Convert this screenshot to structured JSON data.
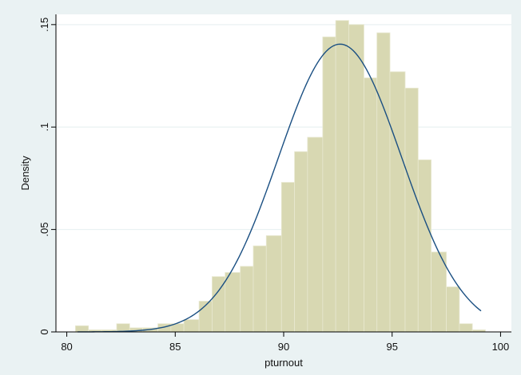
{
  "chart_data": {
    "type": "bar",
    "subtype": "histogram with normal density overlay",
    "title": "",
    "xlabel": "pturnout",
    "ylabel": "Density",
    "xlim": [
      79.5,
      100.5
    ],
    "ylim": [
      0,
      0.155
    ],
    "x_ticks": [
      80,
      85,
      90,
      95,
      100
    ],
    "x_tick_labels": [
      "80",
      "85",
      "90",
      "95",
      "100"
    ],
    "y_ticks": [
      0,
      0.05,
      0.1,
      0.15
    ],
    "y_tick_labels": [
      "0",
      ".05",
      ".1",
      ".15"
    ],
    "grid": "horizontal",
    "bin_width": 0.63,
    "bins": [
      {
        "x0": 80.4,
        "x1": 81.0,
        "value": 0.003
      },
      {
        "x0": 81.0,
        "x1": 81.6,
        "value": 0.001
      },
      {
        "x0": 81.6,
        "x1": 82.3,
        "value": 0.001
      },
      {
        "x0": 82.3,
        "x1": 82.9,
        "value": 0.004
      },
      {
        "x0": 82.9,
        "x1": 83.5,
        "value": 0.002
      },
      {
        "x0": 83.5,
        "x1": 84.2,
        "value": 0.002
      },
      {
        "x0": 84.2,
        "x1": 84.8,
        "value": 0.004
      },
      {
        "x0": 84.8,
        "x1": 85.4,
        "value": 0.004
      },
      {
        "x0": 85.4,
        "x1": 86.1,
        "value": 0.006
      },
      {
        "x0": 86.1,
        "x1": 86.7,
        "value": 0.015
      },
      {
        "x0": 86.7,
        "x1": 87.3,
        "value": 0.027
      },
      {
        "x0": 87.3,
        "x1": 88.0,
        "value": 0.029
      },
      {
        "x0": 88.0,
        "x1": 88.6,
        "value": 0.032
      },
      {
        "x0": 88.6,
        "x1": 89.2,
        "value": 0.042
      },
      {
        "x0": 89.2,
        "x1": 89.9,
        "value": 0.047
      },
      {
        "x0": 89.9,
        "x1": 90.5,
        "value": 0.073
      },
      {
        "x0": 90.5,
        "x1": 91.1,
        "value": 0.088
      },
      {
        "x0": 91.1,
        "x1": 91.8,
        "value": 0.095
      },
      {
        "x0": 91.8,
        "x1": 92.4,
        "value": 0.144
      },
      {
        "x0": 92.4,
        "x1": 93.0,
        "value": 0.152
      },
      {
        "x0": 93.0,
        "x1": 93.7,
        "value": 0.15
      },
      {
        "x0": 93.7,
        "x1": 94.3,
        "value": 0.124
      },
      {
        "x0": 94.3,
        "x1": 94.9,
        "value": 0.146
      },
      {
        "x0": 94.9,
        "x1": 95.6,
        "value": 0.127
      },
      {
        "x0": 95.6,
        "x1": 96.2,
        "value": 0.119
      },
      {
        "x0": 96.2,
        "x1": 96.8,
        "value": 0.084
      },
      {
        "x0": 96.8,
        "x1": 97.5,
        "value": 0.039
      },
      {
        "x0": 97.5,
        "x1": 98.1,
        "value": 0.022
      },
      {
        "x0": 98.1,
        "x1": 98.7,
        "value": 0.004
      },
      {
        "x0": 98.7,
        "x1": 99.3,
        "value": 0.001
      }
    ],
    "normal_curve": {
      "mean": 92.6,
      "sd": 2.84,
      "x_range": [
        80.5,
        99.1
      ]
    },
    "colors": {
      "background": "#eaf2f3",
      "plot_area": "#ffffff",
      "bar_fill": "#d8d8b2",
      "bar_stroke": "#e8e8d0",
      "curve": "#1a4f82",
      "grid": "#eaf2f3",
      "axis": "#000000"
    }
  }
}
